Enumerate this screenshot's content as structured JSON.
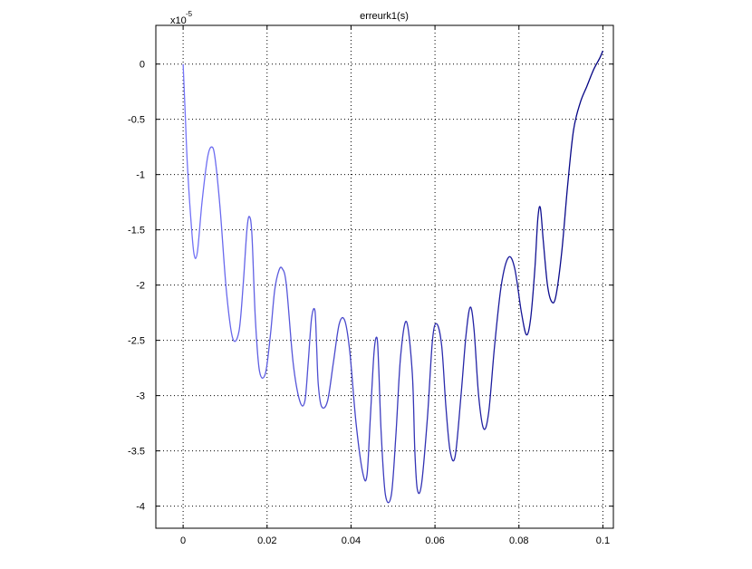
{
  "chart_data": {
    "type": "line",
    "title": "erreurk1(s)",
    "xlabel": "",
    "ylabel": "",
    "y_exponent_label": {
      "base": "x10",
      "exponent": "-5"
    },
    "xlim": [
      -0.0065,
      0.1025
    ],
    "ylim": [
      -4.2,
      0.35
    ],
    "x_ticks": [
      0,
      0.02,
      0.04,
      0.06,
      0.08,
      0.1
    ],
    "x_tick_labels": [
      "0",
      "0.02",
      "0.04",
      "0.06",
      "0.08",
      "0.1"
    ],
    "y_ticks": [
      0,
      -0.5,
      -1,
      -1.5,
      -2,
      -2.5,
      -3,
      -3.5,
      -4
    ],
    "y_tick_labels": [
      "0",
      "-0.5",
      "-1",
      "-1.5",
      "-2",
      "-2.5",
      "-3",
      "-3.5",
      "-4"
    ],
    "grid": true,
    "colors": {
      "line_start": "#7a7aff",
      "line_end": "#000080",
      "axes": "#000000",
      "grid": "#000000"
    },
    "series": [
      {
        "x": [
          0,
          0.0005,
          0.001,
          0.0018,
          0.0026,
          0.0034,
          0.0045,
          0.0058,
          0.0068,
          0.0076,
          0.0088,
          0.0103,
          0.0118,
          0.0133,
          0.0143,
          0.0152,
          0.0158,
          0.0164,
          0.0172,
          0.0182,
          0.0196,
          0.0208,
          0.0218,
          0.0228,
          0.0236,
          0.0246,
          0.0262,
          0.0278,
          0.029,
          0.0298,
          0.0306,
          0.0314,
          0.0318,
          0.0322,
          0.033,
          0.0344,
          0.0358,
          0.0372,
          0.0385,
          0.0397,
          0.0412,
          0.0428,
          0.0438,
          0.0446,
          0.0455,
          0.0462,
          0.0466,
          0.0472,
          0.0482,
          0.0496,
          0.0507,
          0.0518,
          0.0532,
          0.0546,
          0.0552,
          0.0558,
          0.0568,
          0.0582,
          0.0594,
          0.0604,
          0.0616,
          0.0626,
          0.0636,
          0.0648,
          0.0662,
          0.0674,
          0.0684,
          0.0693,
          0.0704,
          0.0716,
          0.0728,
          0.0742,
          0.0758,
          0.0775,
          0.079,
          0.0806,
          0.0818,
          0.0828,
          0.0838,
          0.0845,
          0.0851,
          0.0858,
          0.0868,
          0.0878,
          0.0888,
          0.0902,
          0.0916,
          0.093,
          0.0946,
          0.0962,
          0.0978,
          0.0992,
          0.1
        ],
        "y": [
          0,
          -0.45,
          -0.9,
          -1.38,
          -1.72,
          -1.7,
          -1.25,
          -0.85,
          -0.75,
          -0.85,
          -1.3,
          -2.05,
          -2.48,
          -2.42,
          -2.0,
          -1.5,
          -1.38,
          -1.55,
          -2.3,
          -2.78,
          -2.8,
          -2.45,
          -2.05,
          -1.87,
          -1.85,
          -2.0,
          -2.7,
          -3.05,
          -3.05,
          -2.7,
          -2.3,
          -2.23,
          -2.55,
          -2.9,
          -3.1,
          -3.05,
          -2.7,
          -2.35,
          -2.32,
          -2.6,
          -3.25,
          -3.7,
          -3.72,
          -3.2,
          -2.6,
          -2.48,
          -2.75,
          -3.35,
          -3.9,
          -3.9,
          -3.35,
          -2.65,
          -2.33,
          -2.8,
          -3.5,
          -3.85,
          -3.8,
          -3.2,
          -2.5,
          -2.35,
          -2.55,
          -3.1,
          -3.5,
          -3.55,
          -3.0,
          -2.45,
          -2.2,
          -2.4,
          -3.0,
          -3.3,
          -3.15,
          -2.55,
          -2.0,
          -1.75,
          -1.85,
          -2.25,
          -2.45,
          -2.3,
          -1.85,
          -1.4,
          -1.3,
          -1.6,
          -2.0,
          -2.15,
          -2.1,
          -1.7,
          -1.1,
          -0.6,
          -0.35,
          -0.2,
          -0.05,
          0.05,
          0.12
        ]
      }
    ]
  }
}
